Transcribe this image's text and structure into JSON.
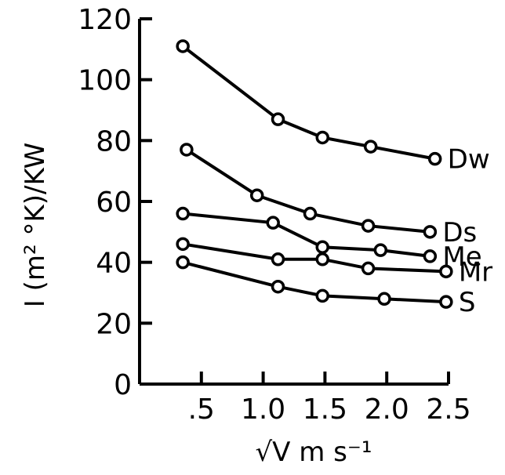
{
  "chart_data": {
    "type": "line",
    "title": "",
    "xlabel": "√V   m s⁻¹",
    "ylabel": "I   (m² °K)/KW",
    "xlim": [
      0,
      2.5
    ],
    "ylim": [
      0,
      120
    ],
    "xticks": [
      0.5,
      1.0,
      1.5,
      2.0,
      2.5
    ],
    "xtick_labels": [
      ".5",
      "1.0",
      "1.5",
      "2.0",
      "2.5"
    ],
    "yticks": [
      0,
      20,
      40,
      60,
      80,
      100,
      120
    ],
    "ytick_labels": [
      "0",
      "20",
      "40",
      "60",
      "80",
      "100",
      "120"
    ],
    "grid": false,
    "legend": "labels at line ends",
    "series": [
      {
        "name": "Dw",
        "x": [
          0.35,
          1.12,
          1.48,
          1.87,
          2.39
        ],
        "y": [
          111,
          87,
          81,
          78,
          74
        ]
      },
      {
        "name": "Ds",
        "x": [
          0.38,
          0.95,
          1.38,
          1.85,
          2.35
        ],
        "y": [
          77,
          62,
          56,
          52,
          50
        ]
      },
      {
        "name": "Me",
        "x": [
          0.35,
          1.08,
          1.48,
          1.95,
          2.35
        ],
        "y": [
          56,
          53,
          45,
          44,
          42
        ]
      },
      {
        "name": "Mr",
        "x": [
          0.35,
          1.12,
          1.48,
          1.85,
          2.48
        ],
        "y": [
          46,
          41,
          41,
          38,
          37
        ]
      },
      {
        "name": "S",
        "x": [
          0.35,
          1.12,
          1.48,
          1.98,
          2.48
        ],
        "y": [
          40,
          32,
          29,
          28,
          27
        ]
      }
    ]
  }
}
